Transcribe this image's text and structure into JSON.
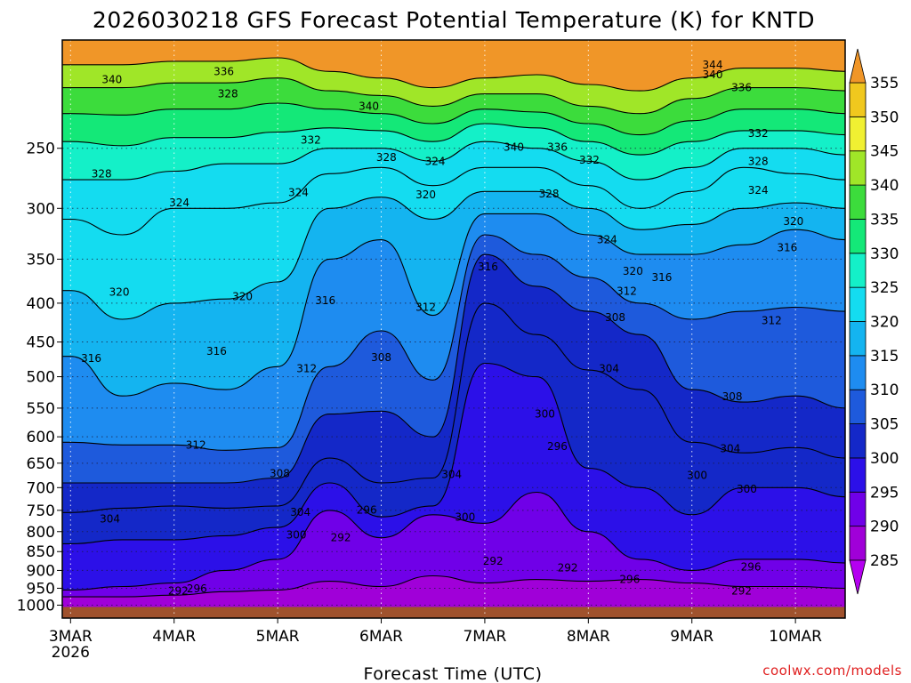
{
  "chart_data": {
    "type": "heatmap",
    "title": "2026030218 GFS Forecast Potential Temperature (K) for KNTD",
    "xlabel": "Forecast Time (UTC)",
    "ylabel": "",
    "credit": "coolwx.com/models",
    "x_ticks": [
      {
        "label": "3MAR",
        "sub": "2026"
      },
      {
        "label": "4MAR",
        "sub": ""
      },
      {
        "label": "5MAR",
        "sub": ""
      },
      {
        "label": "6MAR",
        "sub": ""
      },
      {
        "label": "7MAR",
        "sub": ""
      },
      {
        "label": "8MAR",
        "sub": ""
      },
      {
        "label": "9MAR",
        "sub": ""
      },
      {
        "label": "10MAR",
        "sub": ""
      }
    ],
    "x_range_days": [
      -0.08,
      7.48
    ],
    "y_axis": {
      "scale": "log-pressure",
      "range_hpa": [
        1040,
        180
      ],
      "ticks": [
        250,
        300,
        350,
        400,
        450,
        500,
        550,
        600,
        650,
        700,
        750,
        800,
        850,
        900,
        950,
        1000
      ]
    },
    "colorbar": {
      "levels": [
        285,
        290,
        295,
        300,
        305,
        310,
        315,
        320,
        325,
        330,
        335,
        340,
        345,
        350,
        355
      ],
      "colors": [
        "#a000d8",
        "#7000e8",
        "#2c10e8",
        "#1428c8",
        "#1e5adc",
        "#1e8cf0",
        "#14b4f0",
        "#14dcf0",
        "#14f0c8",
        "#14e878",
        "#3cdc3c",
        "#a0e628",
        "#f0f032",
        "#f0c81e",
        "#f09628"
      ],
      "below_color": "#b400f0",
      "above_color": "#f09628"
    },
    "ground_color": "#a0522d",
    "grid": true,
    "contour_interval_k": 4,
    "series": [
      {
        "name": "292",
        "x": [
          0.0,
          0.5,
          1.0,
          1.5,
          2.0,
          2.5,
          3.0,
          3.5,
          4.0,
          4.5,
          5.0,
          5.5,
          6.0,
          6.5,
          7.0,
          7.5
        ],
        "pressure": [
          975,
          975,
          970,
          960,
          955,
          930,
          945,
          915,
          935,
          925,
          930,
          925,
          935,
          945,
          945,
          950
        ]
      },
      {
        "name": "296",
        "x": [
          0.0,
          0.5,
          1.0,
          1.5,
          2.0,
          2.5,
          3.0,
          3.5,
          4.0,
          4.5,
          5.0,
          5.5,
          6.0,
          6.5,
          7.0,
          7.5
        ],
        "pressure": [
          955,
          945,
          935,
          900,
          870,
          750,
          815,
          760,
          780,
          710,
          800,
          870,
          900,
          870,
          870,
          880
        ]
      },
      {
        "name": "300",
        "x": [
          0.0,
          0.5,
          1.0,
          1.5,
          2.0,
          2.5,
          3.0,
          3.5,
          4.0,
          4.5,
          5.0,
          5.5,
          6.0,
          6.5,
          7.0,
          7.5
        ],
        "pressure": [
          830,
          820,
          820,
          810,
          790,
          690,
          765,
          740,
          480,
          500,
          660,
          700,
          760,
          700,
          700,
          720
        ]
      },
      {
        "name": "304",
        "x": [
          0.0,
          0.5,
          1.0,
          1.5,
          2.0,
          2.5,
          3.0,
          3.5,
          4.0,
          4.5,
          5.0,
          5.5,
          6.0,
          6.5,
          7.0,
          7.5
        ],
        "pressure": [
          755,
          745,
          740,
          745,
          740,
          640,
          690,
          680,
          400,
          440,
          490,
          520,
          610,
          630,
          620,
          640
        ]
      },
      {
        "name": "308",
        "x": [
          0.0,
          0.5,
          1.0,
          1.5,
          2.0,
          2.5,
          3.0,
          3.5,
          4.0,
          4.5,
          5.0,
          5.5,
          6.0,
          6.5,
          7.0,
          7.5
        ],
        "pressure": [
          690,
          690,
          690,
          690,
          680,
          560,
          555,
          600,
          345,
          380,
          410,
          440,
          520,
          540,
          530,
          550
        ]
      },
      {
        "name": "312",
        "x": [
          0.0,
          0.5,
          1.0,
          1.5,
          2.0,
          2.5,
          3.0,
          3.5,
          4.0,
          4.5,
          5.0,
          5.5,
          6.0,
          6.5,
          7.0,
          7.5
        ],
        "pressure": [
          610,
          615,
          615,
          625,
          620,
          485,
          435,
          505,
          325,
          345,
          370,
          400,
          420,
          410,
          405,
          410
        ]
      },
      {
        "name": "316",
        "x": [
          0.0,
          0.5,
          1.0,
          1.5,
          2.0,
          2.5,
          3.0,
          3.5,
          4.0,
          4.5,
          5.0,
          5.5,
          6.0,
          6.5,
          7.0,
          7.5
        ],
        "pressure": [
          470,
          530,
          510,
          520,
          485,
          350,
          330,
          415,
          305,
          305,
          325,
          345,
          345,
          335,
          320,
          330
        ]
      },
      {
        "name": "320",
        "x": [
          0.0,
          0.5,
          1.0,
          1.5,
          2.0,
          2.5,
          3.0,
          3.5,
          4.0,
          4.5,
          5.0,
          5.5,
          6.0,
          6.5,
          7.0,
          7.5
        ],
        "pressure": [
          385,
          420,
          400,
          395,
          375,
          300,
          290,
          310,
          285,
          285,
          300,
          320,
          315,
          300,
          295,
          300
        ]
      },
      {
        "name": "324",
        "x": [
          0.0,
          0.5,
          1.0,
          1.5,
          2.0,
          2.5,
          3.0,
          3.5,
          4.0,
          4.5,
          5.0,
          5.5,
          6.0,
          6.5,
          7.0,
          7.5
        ],
        "pressure": [
          310,
          325,
          300,
          300,
          295,
          270,
          265,
          280,
          265,
          265,
          280,
          300,
          285,
          265,
          270,
          275
        ]
      },
      {
        "name": "328",
        "x": [
          0.0,
          0.5,
          1.0,
          1.5,
          2.0,
          2.5,
          3.0,
          3.5,
          4.0,
          4.5,
          5.0,
          5.5,
          6.0,
          6.5,
          7.0,
          7.5
        ],
        "pressure": [
          275,
          275,
          268,
          262,
          262,
          250,
          250,
          260,
          245,
          250,
          260,
          275,
          265,
          250,
          250,
          255
        ]
      },
      {
        "name": "332",
        "x": [
          0.0,
          0.5,
          1.0,
          1.5,
          2.0,
          2.5,
          3.0,
          3.5,
          4.0,
          4.5,
          5.0,
          5.5,
          6.0,
          6.5,
          7.0,
          7.5
        ],
        "pressure": [
          245,
          248,
          242,
          242,
          238,
          235,
          237,
          245,
          232,
          235,
          245,
          255,
          245,
          237,
          237,
          240
        ]
      },
      {
        "name": "336",
        "x": [
          0.0,
          0.5,
          1.0,
          1.5,
          2.0,
          2.5,
          3.0,
          3.5,
          4.0,
          4.5,
          5.0,
          5.5,
          6.0,
          6.5,
          7.0,
          7.5
        ],
        "pressure": [
          225,
          226,
          222,
          222,
          218,
          222,
          225,
          232,
          222,
          224,
          232,
          240,
          230,
          222,
          222,
          225
        ]
      },
      {
        "name": "340",
        "x": [
          0.0,
          0.5,
          1.0,
          1.5,
          2.0,
          2.5,
          3.0,
          3.5,
          4.0,
          4.5,
          5.0,
          5.5,
          6.0,
          6.5,
          7.0,
          7.5
        ],
        "pressure": [
          208,
          208,
          205,
          205,
          202,
          210,
          213,
          220,
          212,
          212,
          220,
          225,
          215,
          208,
          208,
          210
        ]
      },
      {
        "name": "344",
        "x": [
          0.0,
          0.5,
          1.0,
          1.5,
          2.0,
          2.5,
          3.0,
          3.5,
          4.0,
          4.5,
          5.0,
          5.5,
          6.0,
          6.5,
          7.0,
          7.5
        ],
        "pressure": [
          194,
          194,
          192,
          192,
          190,
          198,
          202,
          208,
          202,
          200,
          206,
          210,
          202,
          196,
          196,
          198
        ]
      }
    ],
    "contour_labels": [
      {
        "text": "340",
        "x": 0.4,
        "p": 203
      },
      {
        "text": "336",
        "x": 1.48,
        "p": 198
      },
      {
        "text": "328",
        "x": 1.52,
        "p": 212
      },
      {
        "text": "340",
        "x": 2.88,
        "p": 220
      },
      {
        "text": "332",
        "x": 2.32,
        "p": 244
      },
      {
        "text": "328",
        "x": 3.05,
        "p": 257
      },
      {
        "text": "324",
        "x": 3.52,
        "p": 260
      },
      {
        "text": "340",
        "x": 4.28,
        "p": 249
      },
      {
        "text": "336",
        "x": 4.7,
        "p": 249
      },
      {
        "text": "332",
        "x": 5.01,
        "p": 259
      },
      {
        "text": "344",
        "x": 6.2,
        "p": 194
      },
      {
        "text": "340",
        "x": 6.2,
        "p": 200
      },
      {
        "text": "336",
        "x": 6.48,
        "p": 208
      },
      {
        "text": "332",
        "x": 6.64,
        "p": 239
      },
      {
        "text": "328",
        "x": 6.64,
        "p": 260
      },
      {
        "text": "324",
        "x": 6.64,
        "p": 284
      },
      {
        "text": "328",
        "x": 0.3,
        "p": 270
      },
      {
        "text": "324",
        "x": 1.05,
        "p": 295
      },
      {
        "text": "324",
        "x": 2.2,
        "p": 286
      },
      {
        "text": "320",
        "x": 3.43,
        "p": 288
      },
      {
        "text": "328",
        "x": 4.62,
        "p": 287
      },
      {
        "text": "320",
        "x": 6.98,
        "p": 312
      },
      {
        "text": "324",
        "x": 5.18,
        "p": 330
      },
      {
        "text": "316",
        "x": 6.92,
        "p": 338
      },
      {
        "text": "316",
        "x": 4.03,
        "p": 358
      },
      {
        "text": "320",
        "x": 5.43,
        "p": 363
      },
      {
        "text": "316",
        "x": 5.71,
        "p": 370
      },
      {
        "text": "320",
        "x": 0.47,
        "p": 387
      },
      {
        "text": "320",
        "x": 1.66,
        "p": 392
      },
      {
        "text": "316",
        "x": 2.46,
        "p": 397
      },
      {
        "text": "312",
        "x": 3.43,
        "p": 405
      },
      {
        "text": "312",
        "x": 5.37,
        "p": 386
      },
      {
        "text": "308",
        "x": 5.26,
        "p": 418
      },
      {
        "text": "312",
        "x": 6.77,
        "p": 422
      },
      {
        "text": "316",
        "x": 0.2,
        "p": 473
      },
      {
        "text": "316",
        "x": 1.41,
        "p": 463
      },
      {
        "text": "312",
        "x": 2.28,
        "p": 488
      },
      {
        "text": "308",
        "x": 3.0,
        "p": 472
      },
      {
        "text": "304",
        "x": 5.2,
        "p": 488
      },
      {
        "text": "308",
        "x": 6.39,
        "p": 531
      },
      {
        "text": "300",
        "x": 4.58,
        "p": 560
      },
      {
        "text": "312",
        "x": 1.21,
        "p": 615
      },
      {
        "text": "296",
        "x": 4.7,
        "p": 618
      },
      {
        "text": "304",
        "x": 6.37,
        "p": 622
      },
      {
        "text": "308",
        "x": 2.02,
        "p": 671
      },
      {
        "text": "304",
        "x": 3.68,
        "p": 673
      },
      {
        "text": "300",
        "x": 6.05,
        "p": 674
      },
      {
        "text": "300",
        "x": 6.53,
        "p": 703
      },
      {
        "text": "304",
        "x": 2.22,
        "p": 754
      },
      {
        "text": "296",
        "x": 2.86,
        "p": 749
      },
      {
        "text": "304",
        "x": 0.38,
        "p": 770
      },
      {
        "text": "300",
        "x": 3.81,
        "p": 766
      },
      {
        "text": "300",
        "x": 2.18,
        "p": 808
      },
      {
        "text": "292",
        "x": 2.61,
        "p": 815
      },
      {
        "text": "292",
        "x": 4.08,
        "p": 875
      },
      {
        "text": "292",
        "x": 4.8,
        "p": 893
      },
      {
        "text": "296",
        "x": 5.4,
        "p": 925
      },
      {
        "text": "296",
        "x": 6.57,
        "p": 890
      },
      {
        "text": "292",
        "x": 1.04,
        "p": 958
      },
      {
        "text": "296",
        "x": 1.22,
        "p": 952
      },
      {
        "text": "292",
        "x": 6.48,
        "p": 958
      }
    ]
  }
}
